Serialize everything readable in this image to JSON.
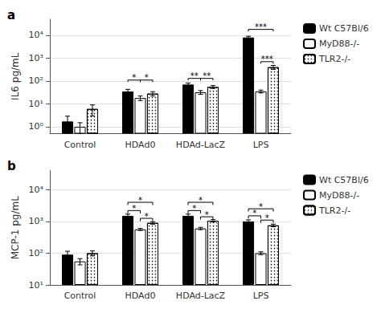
{
  "chart_data": [
    {
      "type": "bar",
      "title": "a",
      "ylabel": "IL6 pg/mL",
      "categories": [
        "Control",
        "HDAd0",
        "HDAd-LacZ",
        "LPS"
      ],
      "series": [
        {
          "name": "Wt C57Bl/6",
          "color": "#000000",
          "values": [
            1.7,
            35,
            70,
            8000
          ],
          "errors": [
            1.2,
            8,
            12,
            1000
          ]
        },
        {
          "name": "MyD88-/-",
          "color": "#ffffff",
          "values": [
            1.0,
            18,
            32,
            35
          ],
          "errors": [
            0.5,
            4,
            6,
            5
          ]
        },
        {
          "name": "TLR2-/-",
          "color": "#ffffff",
          "values": [
            6,
            28,
            55,
            400
          ],
          "errors": [
            3,
            6,
            8,
            80
          ]
        }
      ],
      "ylim": [
        0.5,
        50000
      ],
      "yticks": [
        {
          "value": 1,
          "label": "10⁰"
        },
        {
          "value": 10,
          "label": "10¹"
        },
        {
          "value": 100,
          "label": "10²"
        },
        {
          "value": 1000,
          "label": "10³"
        },
        {
          "value": 10000,
          "label": "10⁴"
        }
      ],
      "log": "y",
      "grid": true,
      "legend": "right",
      "annotations": [
        {
          "category": "HDAd0",
          "from": "Wt C57Bl/6",
          "to": "MyD88-/-",
          "y": 110,
          "text": "*"
        },
        {
          "category": "HDAd0",
          "from": "MyD88-/-",
          "to": "TLR2-/-",
          "y": 110,
          "text": "*"
        },
        {
          "category": "HDAd-LacZ",
          "from": "Wt C57Bl/6",
          "to": "MyD88-/-",
          "y": 130,
          "text": "**"
        },
        {
          "category": "HDAd-LacZ",
          "from": "MyD88-/-",
          "to": "TLR2-/-",
          "y": 130,
          "text": "**"
        },
        {
          "category": "LPS",
          "from": "Wt C57Bl/6",
          "to": "TLR2-/-",
          "y": 18000,
          "text": "***"
        },
        {
          "category": "LPS",
          "from": "MyD88-/-",
          "to": "TLR2-/-",
          "y": 700,
          "text": "***"
        }
      ]
    },
    {
      "type": "bar",
      "title": "b",
      "ylabel": "MCP-1 pg/mL",
      "categories": [
        "Control",
        "HDAd0",
        "HDAd-LacZ",
        "LPS"
      ],
      "series": [
        {
          "name": "Wt C57Bl/6",
          "color": "#000000",
          "values": [
            90,
            1500,
            1500,
            1000
          ],
          "errors": [
            25,
            200,
            200,
            120
          ]
        },
        {
          "name": "MyD88-/-",
          "color": "#ffffff",
          "values": [
            55,
            560,
            600,
            100
          ],
          "errors": [
            12,
            40,
            50,
            10
          ]
        },
        {
          "name": "TLR2-/-",
          "color": "#ffffff",
          "values": [
            100,
            900,
            1050,
            750
          ],
          "errors": [
            18,
            80,
            90,
            70
          ]
        }
      ],
      "ylim": [
        10,
        40000
      ],
      "yticks": [
        {
          "value": 10,
          "label": "10¹"
        },
        {
          "value": 100,
          "label": "10²"
        },
        {
          "value": 1000,
          "label": "10³"
        },
        {
          "value": 10000,
          "label": "10⁴"
        }
      ],
      "log": "y",
      "grid": true,
      "legend": "right",
      "annotations": [
        {
          "category": "HDAd0",
          "from": "Wt C57Bl/6",
          "to": "MyD88-/-",
          "y": 2200,
          "text": "*"
        },
        {
          "category": "HDAd0",
          "from": "MyD88-/-",
          "to": "TLR2-/-",
          "y": 1250,
          "text": "*"
        },
        {
          "category": "HDAd0",
          "from": "Wt C57Bl/6",
          "to": "TLR2-/-",
          "y": 4000,
          "text": "*"
        },
        {
          "category": "HDAd-LacZ",
          "from": "Wt C57Bl/6",
          "to": "MyD88-/-",
          "y": 2200,
          "text": "*"
        },
        {
          "category": "HDAd-LacZ",
          "from": "MyD88-/-",
          "to": "TLR2-/-",
          "y": 1400,
          "text": "*"
        },
        {
          "category": "HDAd-LacZ",
          "from": "Wt C57Bl/6",
          "to": "TLR2-/-",
          "y": 4000,
          "text": "*"
        },
        {
          "category": "LPS",
          "from": "Wt C57Bl/6",
          "to": "MyD88-/-",
          "y": 1500,
          "text": "*"
        },
        {
          "category": "LPS",
          "from": "MyD88-/-",
          "to": "TLR2-/-",
          "y": 1100,
          "text": "*"
        },
        {
          "category": "LPS",
          "from": "Wt C57Bl/6",
          "to": "TLR2-/-",
          "y": 2500,
          "text": "*"
        }
      ]
    }
  ]
}
